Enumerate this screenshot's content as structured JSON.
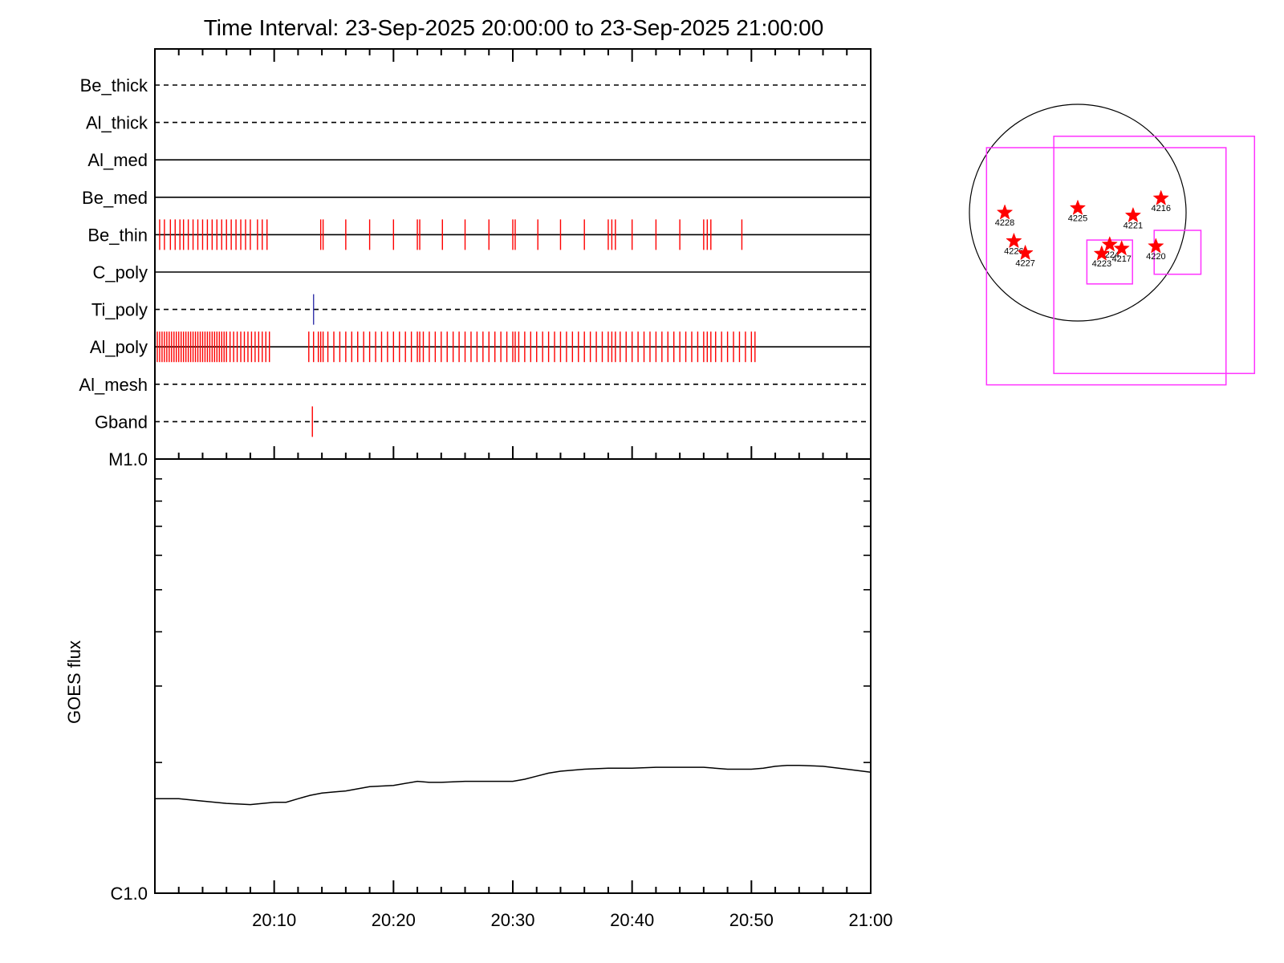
{
  "title": "Time Interval: 23-Sep-2025 20:00:00 to 23-Sep-2025 21:00:00",
  "colors": {
    "events": "#ff0000",
    "ti_event": "#3333aa",
    "boxes": "#ff33ff",
    "stars": "#ff0000",
    "axes": "#000000"
  },
  "chart_data": [
    {
      "type": "scatter",
      "title": "Time Interval: 23-Sep-2025 20:00:00 to 23-Sep-2025 21:00:00",
      "xlabel": "",
      "ylabel": "",
      "x_unit": "minutes after 20:00",
      "xlim": [
        0,
        60
      ],
      "channels": [
        {
          "name": "Be_thick",
          "line": "dashed",
          "events": []
        },
        {
          "name": "Al_thick",
          "line": "dashed",
          "events": []
        },
        {
          "name": "Al_med",
          "line": "solid",
          "events": []
        },
        {
          "name": "Be_med",
          "line": "solid",
          "events": []
        },
        {
          "name": "Be_thin",
          "line": "solid",
          "color": "#ff0000",
          "events": [
            0.4,
            0.8,
            1.3,
            1.7,
            2.1,
            2.4,
            2.8,
            3.2,
            3.6,
            4.0,
            4.4,
            4.8,
            5.2,
            5.6,
            6.0,
            6.4,
            6.8,
            7.2,
            7.6,
            8.0,
            8.6,
            9.0,
            9.4,
            13.9,
            14.1,
            16.0,
            18.0,
            20.0,
            22.0,
            22.2,
            24.1,
            26.0,
            28.0,
            30.0,
            30.2,
            32.1,
            34.0,
            36.0,
            38.0,
            38.3,
            38.6,
            40.0,
            42.0,
            44.0,
            46.0,
            46.3,
            46.6,
            49.2
          ]
        },
        {
          "name": "C_poly",
          "line": "solid",
          "events": []
        },
        {
          "name": "Ti_poly",
          "line": "dashed",
          "color": "#3333aa",
          "events": [
            13.3
          ]
        },
        {
          "name": "Al_poly",
          "line": "solid",
          "color": "#ff0000",
          "events": [
            0.2,
            0.4,
            0.6,
            0.8,
            1.0,
            1.2,
            1.4,
            1.6,
            1.8,
            2.0,
            2.2,
            2.4,
            2.6,
            2.8,
            3.0,
            3.2,
            3.4,
            3.6,
            3.8,
            4.0,
            4.2,
            4.4,
            4.6,
            4.8,
            5.0,
            5.2,
            5.4,
            5.6,
            5.8,
            6.0,
            6.3,
            6.6,
            6.9,
            7.2,
            7.5,
            7.8,
            8.1,
            8.4,
            8.7,
            9.0,
            9.3,
            9.6,
            12.9,
            13.3,
            13.7,
            13.9,
            14.1,
            14.5,
            15.0,
            15.5,
            16.0,
            16.5,
            17.0,
            17.5,
            18.0,
            18.5,
            19.0,
            19.5,
            20.0,
            20.5,
            21.0,
            21.5,
            22.0,
            22.2,
            22.5,
            23.0,
            23.5,
            24.0,
            24.5,
            25.0,
            25.5,
            26.0,
            26.5,
            27.0,
            27.5,
            28.0,
            28.5,
            29.0,
            29.5,
            30.0,
            30.2,
            30.5,
            31.0,
            31.5,
            32.0,
            32.5,
            33.0,
            33.5,
            34.0,
            34.5,
            35.0,
            35.5,
            36.0,
            36.5,
            37.0,
            37.5,
            38.0,
            38.3,
            38.6,
            39.0,
            39.5,
            40.0,
            40.5,
            41.0,
            41.5,
            42.0,
            42.5,
            43.0,
            43.5,
            44.0,
            44.5,
            45.0,
            45.5,
            46.0,
            46.3,
            46.6,
            47.0,
            47.5,
            48.0,
            48.5,
            49.0,
            49.5,
            50.0,
            50.3
          ]
        },
        {
          "name": "Al_mesh",
          "line": "dashed",
          "events": []
        },
        {
          "name": "Gband",
          "line": "dashed",
          "color": "#ff0000",
          "events": [
            13.2
          ]
        }
      ]
    },
    {
      "type": "line",
      "xlabel": "",
      "ylabel": "GOES flux",
      "x_ticks": [
        "20:10",
        "20:20",
        "20:30",
        "20:40",
        "20:50",
        "21:00"
      ],
      "x_tick_values": [
        10,
        20,
        30,
        40,
        50,
        60
      ],
      "x_unit": "minutes after 20:00",
      "xlim": [
        0,
        60
      ],
      "y_scale": "log",
      "y_ticks": [
        "C1.0",
        "M1.0"
      ],
      "y_tick_values": [
        1e-06,
        1e-05
      ],
      "ylim": [
        1e-06,
        1e-05
      ],
      "series": [
        {
          "x": [
            0,
            2,
            4,
            6,
            8,
            10,
            11,
            12,
            13,
            14,
            15,
            16,
            18,
            20,
            22,
            23,
            24,
            26,
            28,
            30,
            31,
            32,
            33,
            34,
            36,
            38,
            40,
            42,
            44,
            46,
            48,
            50,
            51,
            52,
            53,
            54,
            56,
            58,
            60
          ],
          "values": [
            1.65e-06,
            1.65e-06,
            1.63e-06,
            1.61e-06,
            1.6e-06,
            1.62e-06,
            1.62e-06,
            1.65e-06,
            1.68e-06,
            1.7e-06,
            1.71e-06,
            1.72e-06,
            1.76e-06,
            1.77e-06,
            1.81e-06,
            1.8e-06,
            1.8e-06,
            1.81e-06,
            1.81e-06,
            1.81e-06,
            1.83e-06,
            1.86e-06,
            1.89e-06,
            1.91e-06,
            1.93e-06,
            1.94e-06,
            1.94e-06,
            1.95e-06,
            1.95e-06,
            1.95e-06,
            1.93e-06,
            1.93e-06,
            1.94e-06,
            1.96e-06,
            1.97e-06,
            1.97e-06,
            1.96e-06,
            1.93e-06,
            1.9e-06
          ]
        }
      ]
    },
    {
      "type": "scatter",
      "xlabel": "",
      "ylabel": "",
      "x_unit": "arcsec",
      "y_unit": "arcsec",
      "disk_radius": 950,
      "points": [
        {
          "label": "4216",
          "x": 730,
          "y": 125
        },
        {
          "label": "4228",
          "x": -640,
          "y": 0
        },
        {
          "label": "4225",
          "x": 0,
          "y": 40
        },
        {
          "label": "4221",
          "x": 485,
          "y": -25
        },
        {
          "label": "4226",
          "x": -560,
          "y": -250
        },
        {
          "label": "4227",
          "x": -460,
          "y": -355
        },
        {
          "label": "4224",
          "x": 280,
          "y": -280
        },
        {
          "label": "4223",
          "x": 210,
          "y": -360
        },
        {
          "label": "4217",
          "x": 385,
          "y": -315
        },
        {
          "label": "4220",
          "x": 685,
          "y": -295
        }
      ],
      "boxes": [
        {
          "x": [
            -800,
            1300
          ],
          "y": [
            -1510,
            570
          ]
        },
        {
          "x": [
            -210,
            1550
          ],
          "y": [
            -1410,
            670
          ]
        },
        {
          "x": [
            80,
            480
          ],
          "y": [
            -625,
            -240
          ]
        },
        {
          "x": [
            670,
            1080
          ],
          "y": [
            -540,
            -155
          ]
        }
      ]
    }
  ]
}
